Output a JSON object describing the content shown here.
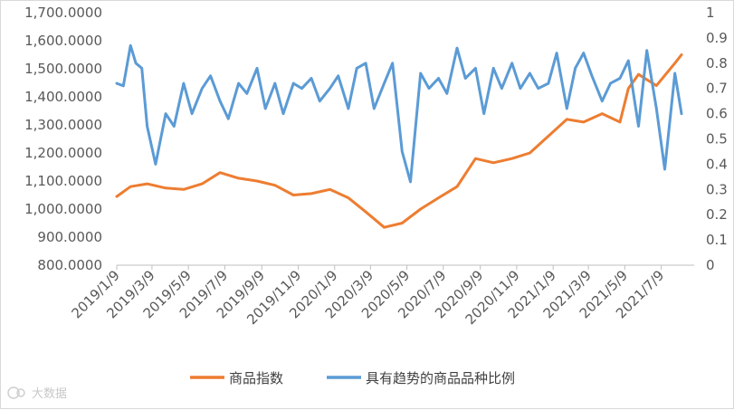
{
  "chart_data": {
    "type": "line",
    "grid": false,
    "legend_position": "bottom",
    "y_left": {
      "min": 800,
      "max": 1700,
      "ticks": [
        "800.0000",
        "900.0000",
        "1,000.0000",
        "1,100.0000",
        "1,200.0000",
        "1,300.0000",
        "1,400.0000",
        "1,500.0000",
        "1,600.0000",
        "1,700.0000"
      ]
    },
    "y_right": {
      "min": 0,
      "max": 1,
      "ticks": [
        "0",
        "0.1",
        "0.2",
        "0.3",
        "0.4",
        "0.5",
        "0.6",
        "0.7",
        "0.8",
        "0.9",
        "1"
      ]
    },
    "x_axis": {
      "start": "2019/1/9",
      "end": "2021/8/9",
      "tick_labels": [
        "2019/1/9",
        "2019/3/9",
        "2019/5/9",
        "2019/7/9",
        "2019/9/9",
        "2019/11/9",
        "2020/1/9",
        "2020/3/9",
        "2020/5/9",
        "2020/7/9",
        "2020/9/9",
        "2020/11/9",
        "2021/1/9",
        "2021/3/9",
        "2021/5/9",
        "2021/7/9"
      ]
    },
    "series": [
      {
        "name": "商品指数",
        "axis": "left",
        "color": "#ED7D31",
        "x": [
          "2019/1/9",
          "2019/2/1",
          "2019/3/1",
          "2019/4/1",
          "2019/5/1",
          "2019/6/1",
          "2019/7/1",
          "2019/8/1",
          "2019/9/1",
          "2019/10/1",
          "2019/11/1",
          "2019/12/1",
          "2020/1/1",
          "2020/2/1",
          "2020/3/1",
          "2020/4/1",
          "2020/5/1",
          "2020/6/1",
          "2020/7/1",
          "2020/8/1",
          "2020/9/1",
          "2020/10/1",
          "2020/11/1",
          "2020/12/1",
          "2021/1/1",
          "2021/2/1",
          "2021/3/1",
          "2021/4/1",
          "2021/5/1",
          "2021/5/15",
          "2021/6/1",
          "2021/7/1",
          "2021/8/1",
          "2021/8/12"
        ],
        "values": [
          1045,
          1080,
          1090,
          1075,
          1070,
          1090,
          1130,
          1110,
          1100,
          1085,
          1050,
          1055,
          1070,
          1040,
          990,
          935,
          950,
          1000,
          1040,
          1080,
          1180,
          1165,
          1180,
          1200,
          1260,
          1320,
          1310,
          1340,
          1310,
          1430,
          1480,
          1440,
          1520,
          1550
        ]
      },
      {
        "name": "具有趋势的商品品种比例",
        "axis": "right",
        "color": "#5B9BD5",
        "x": [
          "2019/1/9",
          "2019/1/20",
          "2019/2/1",
          "2019/2/10",
          "2019/2/20",
          "2019/3/1",
          "2019/3/15",
          "2019/4/1",
          "2019/4/15",
          "2019/5/1",
          "2019/5/15",
          "2019/6/1",
          "2019/6/15",
          "2019/7/1",
          "2019/7/15",
          "2019/8/1",
          "2019/8/15",
          "2019/9/1",
          "2019/9/15",
          "2019/10/1",
          "2019/10/15",
          "2019/11/1",
          "2019/11/15",
          "2019/12/1",
          "2019/12/15",
          "2020/1/1",
          "2020/1/15",
          "2020/2/1",
          "2020/2/15",
          "2020/3/1",
          "2020/3/15",
          "2020/4/1",
          "2020/4/15",
          "2020/5/1",
          "2020/5/15",
          "2020/6/1",
          "2020/6/15",
          "2020/7/1",
          "2020/7/15",
          "2020/8/1",
          "2020/8/15",
          "2020/9/1",
          "2020/9/15",
          "2020/10/1",
          "2020/10/15",
          "2020/11/1",
          "2020/11/15",
          "2020/12/1",
          "2020/12/15",
          "2021/1/1",
          "2021/1/15",
          "2021/2/1",
          "2021/2/15",
          "2021/3/1",
          "2021/3/15",
          "2021/4/1",
          "2021/4/15",
          "2021/5/1",
          "2021/5/15",
          "2021/6/1",
          "2021/6/15",
          "2021/7/1",
          "2021/7/15",
          "2021/8/1",
          "2021/8/12"
        ],
        "values": [
          0.72,
          0.71,
          0.87,
          0.8,
          0.78,
          0.55,
          0.4,
          0.6,
          0.55,
          0.72,
          0.6,
          0.7,
          0.75,
          0.65,
          0.58,
          0.72,
          0.68,
          0.78,
          0.62,
          0.72,
          0.6,
          0.72,
          0.7,
          0.74,
          0.65,
          0.7,
          0.75,
          0.62,
          0.78,
          0.8,
          0.62,
          0.72,
          0.8,
          0.45,
          0.33,
          0.76,
          0.7,
          0.74,
          0.68,
          0.86,
          0.74,
          0.78,
          0.6,
          0.78,
          0.7,
          0.8,
          0.7,
          0.76,
          0.7,
          0.72,
          0.84,
          0.62,
          0.78,
          0.84,
          0.75,
          0.65,
          0.72,
          0.74,
          0.81,
          0.55,
          0.85,
          0.62,
          0.38,
          0.76,
          0.6
        ]
      }
    ]
  }
}
